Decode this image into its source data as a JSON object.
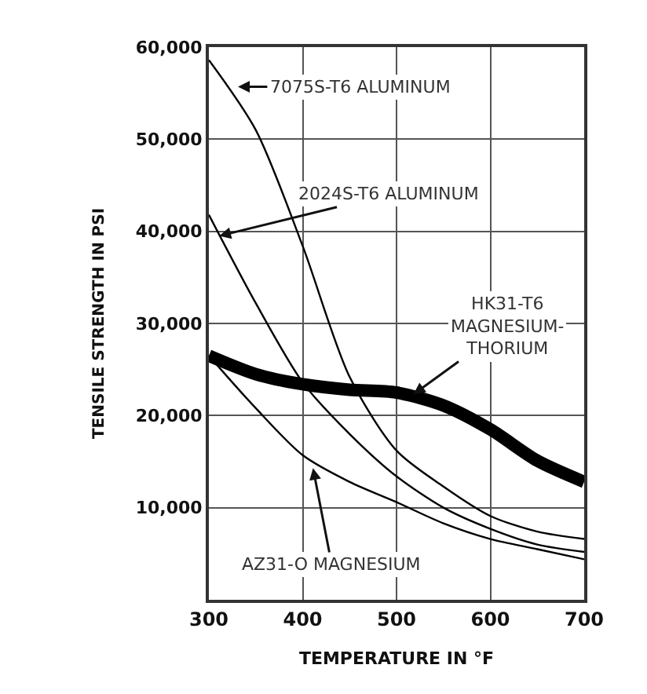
{
  "chart_data": {
    "type": "line",
    "xlabel": "TEMPERATURE IN °F",
    "ylabel": "TENSILE STRENGTH IN PSI",
    "x": [
      300,
      350,
      400,
      450,
      500,
      550,
      600,
      650,
      700
    ],
    "series": [
      {
        "color": "#000000",
        "values": [
          58600,
          51000,
          38400,
          24200,
          16200,
          12300,
          9100,
          7400,
          6600
        ]
      },
      {
        "color": "#000000",
        "values": [
          41800,
          32200,
          23600,
          18000,
          13400,
          10000,
          7700,
          6000,
          5200
        ]
      },
      {
        "color": "#000000",
        "values": [
          26500,
          20800,
          15700,
          12800,
          10600,
          8300,
          6600,
          5500,
          4400
        ]
      },
      {
        "color": "#000000",
        "values": [
          26500,
          24500,
          23400,
          22800,
          22500,
          21100,
          18500,
          15100,
          12800
        ]
      }
    ],
    "annotations": [
      {
        "text": "7075S-T6 ALUMINUM",
        "x": 331,
        "y": 55700
      },
      {
        "text": "2024S-T6 ALUMINUM",
        "x": 311,
        "y": 39500
      },
      {
        "text": "HK31-T6\nMAGNESIUM-\nTHORIUM",
        "x": 518,
        "y": 22300
      },
      {
        "text": "AZ31-O MAGNESIUM",
        "x": 411,
        "y": 14300
      }
    ],
    "xlim": [
      300,
      700
    ],
    "xticks": [
      300,
      400,
      500,
      600,
      700
    ],
    "ylim": [
      0,
      60000
    ],
    "yticks": [
      {
        "value": 10000,
        "label": "10,000"
      },
      {
        "value": 20000,
        "label": "20,000"
      },
      {
        "value": 30000,
        "label": "30,000"
      },
      {
        "value": 40000,
        "label": "40,000"
      },
      {
        "value": 50000,
        "label": "50,000"
      },
      {
        "value": 60000,
        "label": "60,000"
      }
    ],
    "grid": true,
    "legend": false,
    "marker": "none",
    "line_style": "solid"
  }
}
